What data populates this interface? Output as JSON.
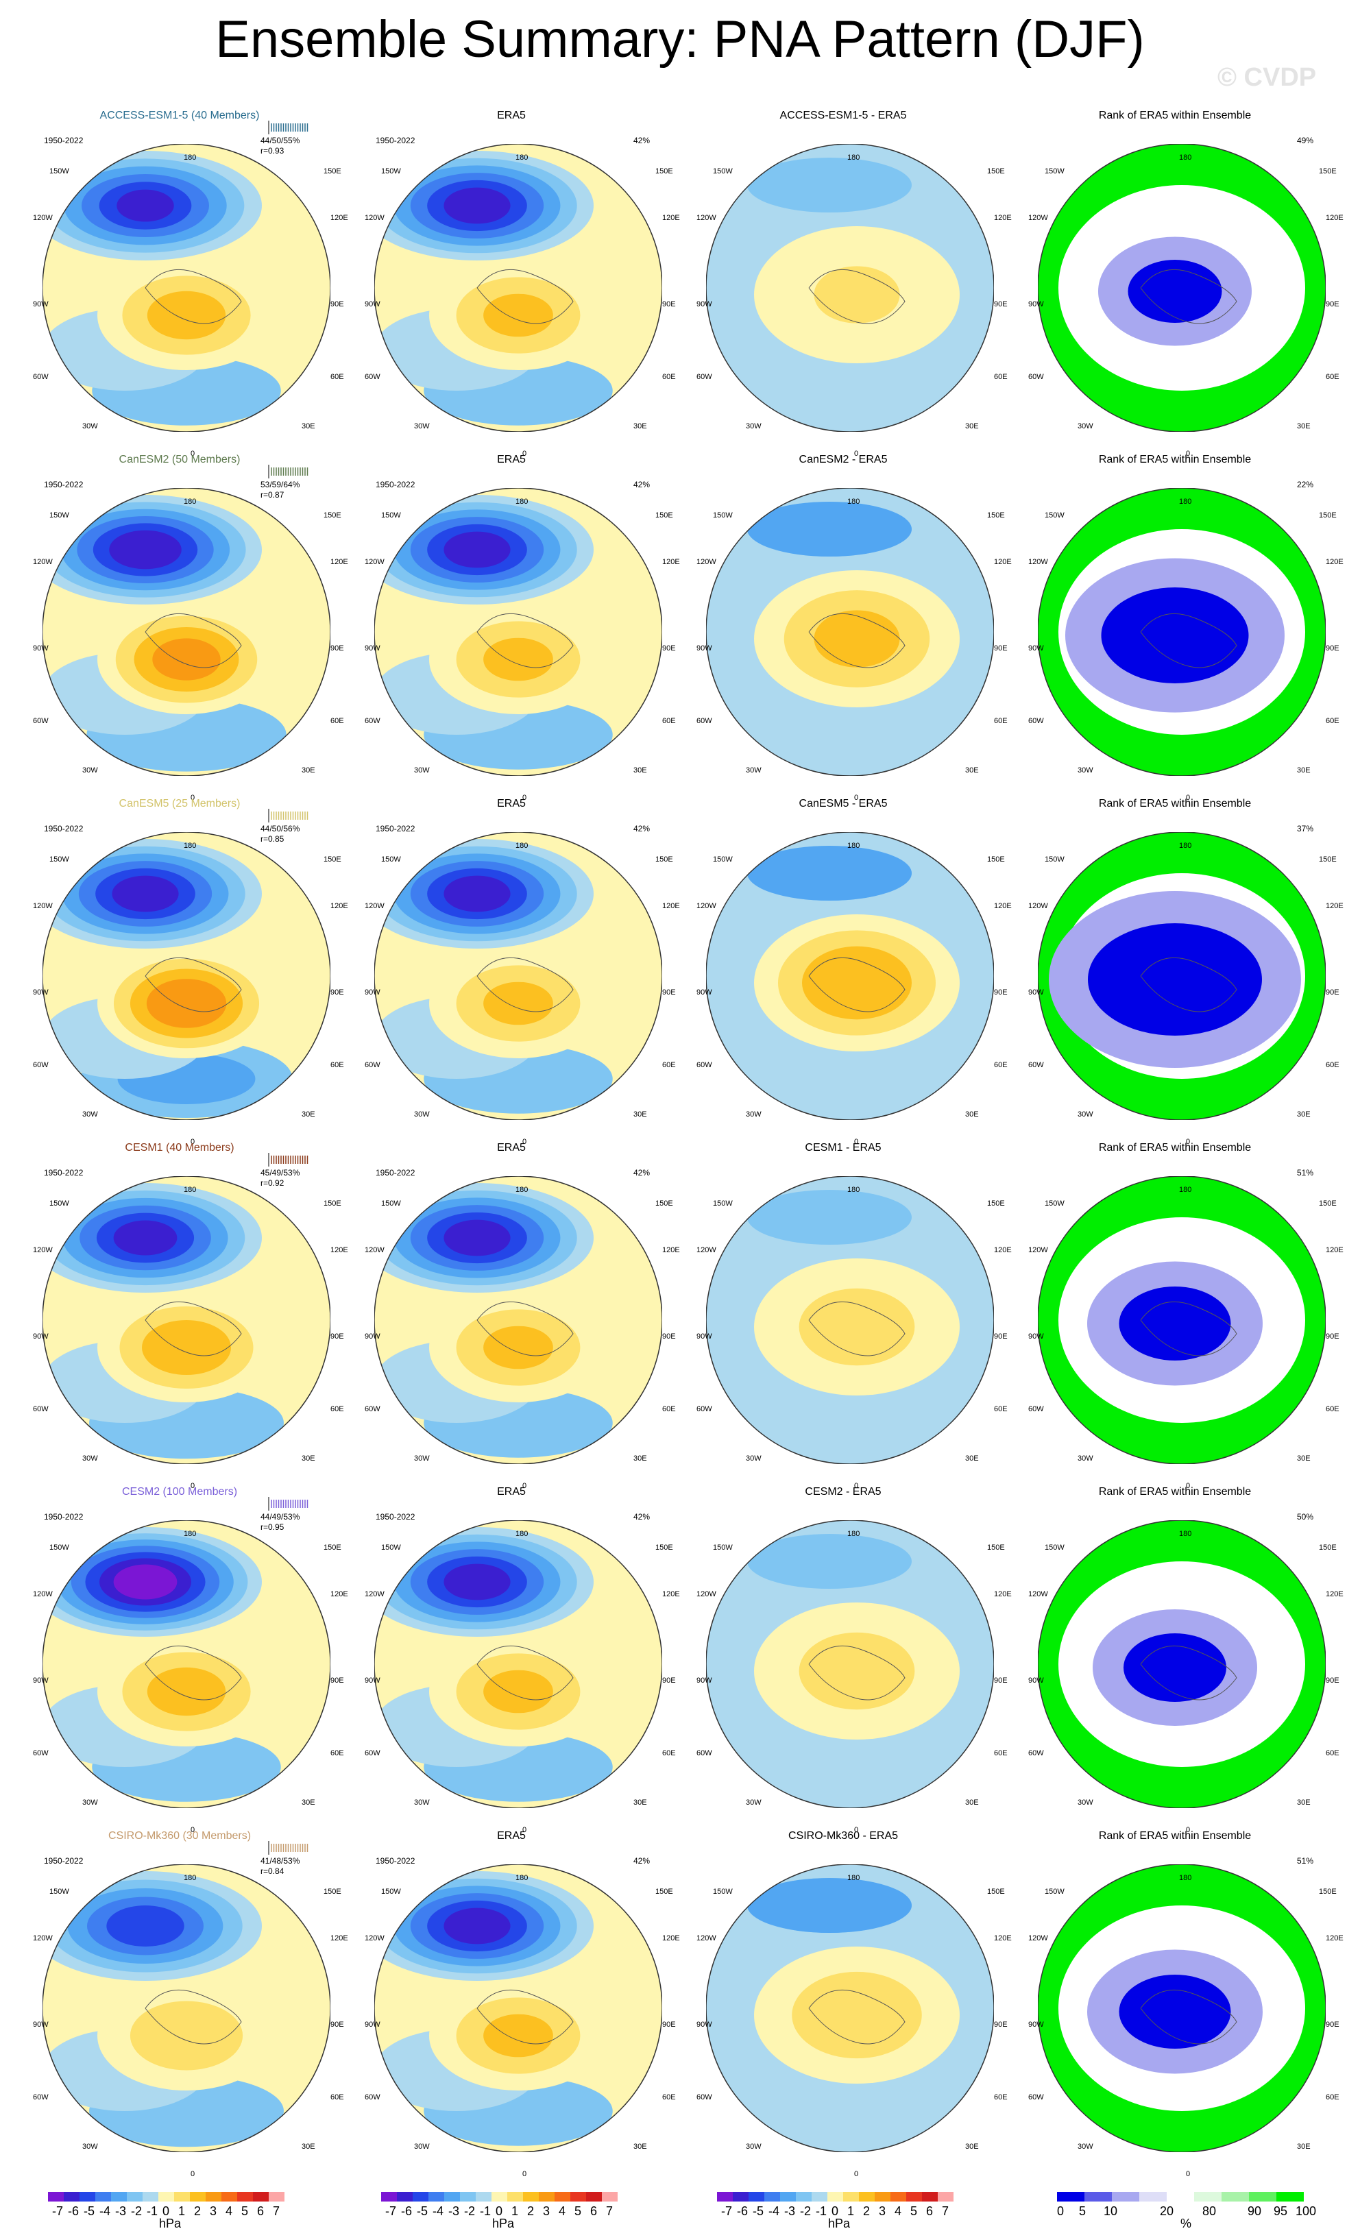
{
  "title": "Ensemble Summary: PNA Pattern (DJF)",
  "watermark": "© CVDP",
  "period": "1950-2022",
  "obs_pct": "42%",
  "obs_title": "ERA5",
  "rank_title": "Rank of ERA5 within Ensemble",
  "lon_labels": [
    "180",
    "150W",
    "150E",
    "120W",
    "120E",
    "90W",
    "90E",
    "60W",
    "60E",
    "30W",
    "30E",
    "0"
  ],
  "colorbars": {
    "hpa_ticks": [
      "-7",
      "-6",
      "-5",
      "-4",
      "-3",
      "-2",
      "-1",
      "0",
      "1",
      "2",
      "3",
      "4",
      "5",
      "6",
      "7"
    ],
    "hpa_unit": "hPa",
    "pct_ticks": [
      "0",
      "5",
      "10",
      "20",
      "80",
      "90",
      "95",
      "100"
    ],
    "pct_unit": "%",
    "hpa_colors": [
      "#7b16d4",
      "#3b1fd0",
      "#2446e8",
      "#3f7ef0",
      "#52a6f2",
      "#7fc5f2",
      "#add9ef",
      "#fef6b2",
      "#fde06a",
      "#fcc020",
      "#f99a13",
      "#f76b17",
      "#e83620",
      "#d11c1c",
      "#fca6a6"
    ],
    "pct_colors": [
      "#0000e6",
      "#5b5be8",
      "#a8a8f0",
      "#dedef7",
      "#ffffff",
      "#ddf9dd",
      "#a8f2a8",
      "#5ff05f",
      "#00ee00"
    ]
  },
  "chart_data": [
    {
      "type": "heatmap",
      "model": "ACCESS-ESM1-5",
      "members": 40,
      "title": "ACCESS-ESM1-5 (40 Members)",
      "stats": "44/50/55%",
      "corr": "r=0.93",
      "diff_title": "ACCESS-ESM1-5 - ERA5",
      "rank_pct": "49%",
      "color": "#2a6d8f",
      "centers": {
        "pac_low": -5.3,
        "polar_high": 2.5,
        "atl_low": -1.6
      },
      "diff": {
        "arctic": 1.2,
        "pacific": -0.6
      },
      "rank_blue": 0.45
    },
    {
      "type": "heatmap",
      "model": "CanESM2",
      "members": 50,
      "title": "CanESM2 (50 Members)",
      "stats": "53/59/64%",
      "corr": "r=0.87",
      "diff_title": "CanESM2 - ERA5",
      "rank_pct": "22%",
      "color": "#5e7a4e",
      "centers": {
        "pac_low": -5.8,
        "polar_high": 3.4,
        "atl_low": -1.8
      },
      "diff": {
        "arctic": 2.4,
        "pacific": -1.3
      },
      "rank_blue": 0.75
    },
    {
      "type": "heatmap",
      "model": "CanESM5",
      "members": 25,
      "title": "CanESM5 (25 Members)",
      "stats": "44/50/56%",
      "corr": "r=0.85",
      "diff_title": "CanESM5 - ERA5",
      "rank_pct": "37%",
      "color": "#d2c36a",
      "centers": {
        "pac_low": -5.6,
        "polar_high": 3.8,
        "atl_low": -2.1
      },
      "diff": {
        "arctic": 3.0,
        "pacific": -1.4
      },
      "rank_blue": 0.9
    },
    {
      "type": "heatmap",
      "model": "CESM1",
      "members": 40,
      "title": "CESM1 (40 Members)",
      "stats": "45/49/53%",
      "corr": "r=0.92",
      "diff_title": "CESM1 - ERA5",
      "rank_pct": "51%",
      "color": "#8b3a1a",
      "centers": {
        "pac_low": -5.5,
        "polar_high": 2.8,
        "atl_low": -1.7
      },
      "diff": {
        "arctic": 1.6,
        "pacific": -1.0
      },
      "rank_blue": 0.55
    },
    {
      "type": "heatmap",
      "model": "CESM2",
      "members": 100,
      "title": "CESM2 (100 Members)",
      "stats": "44/49/53%",
      "corr": "r=0.95",
      "diff_title": "CESM2 - ERA5",
      "rank_pct": "50%",
      "color": "#7a5fd8",
      "centers": {
        "pac_low": -6.6,
        "polar_high": 2.5,
        "atl_low": -1.6
      },
      "diff": {
        "arctic": 1.6,
        "pacific": -0.8
      },
      "rank_blue": 0.5
    },
    {
      "type": "heatmap",
      "model": "CSIRO-Mk360",
      "members": 30,
      "title": "CSIRO-Mk360 (30 Members)",
      "stats": "41/48/53%",
      "corr": "r=0.84",
      "diff_title": "CSIRO-Mk360 - ERA5",
      "rank_pct": "51%",
      "color": "#c49a6c",
      "centers": {
        "pac_low": -4.8,
        "polar_high": 1.9,
        "atl_low": -1.7
      },
      "diff": {
        "arctic": 1.9,
        "pacific": -1.1
      },
      "rank_blue": 0.55
    }
  ]
}
